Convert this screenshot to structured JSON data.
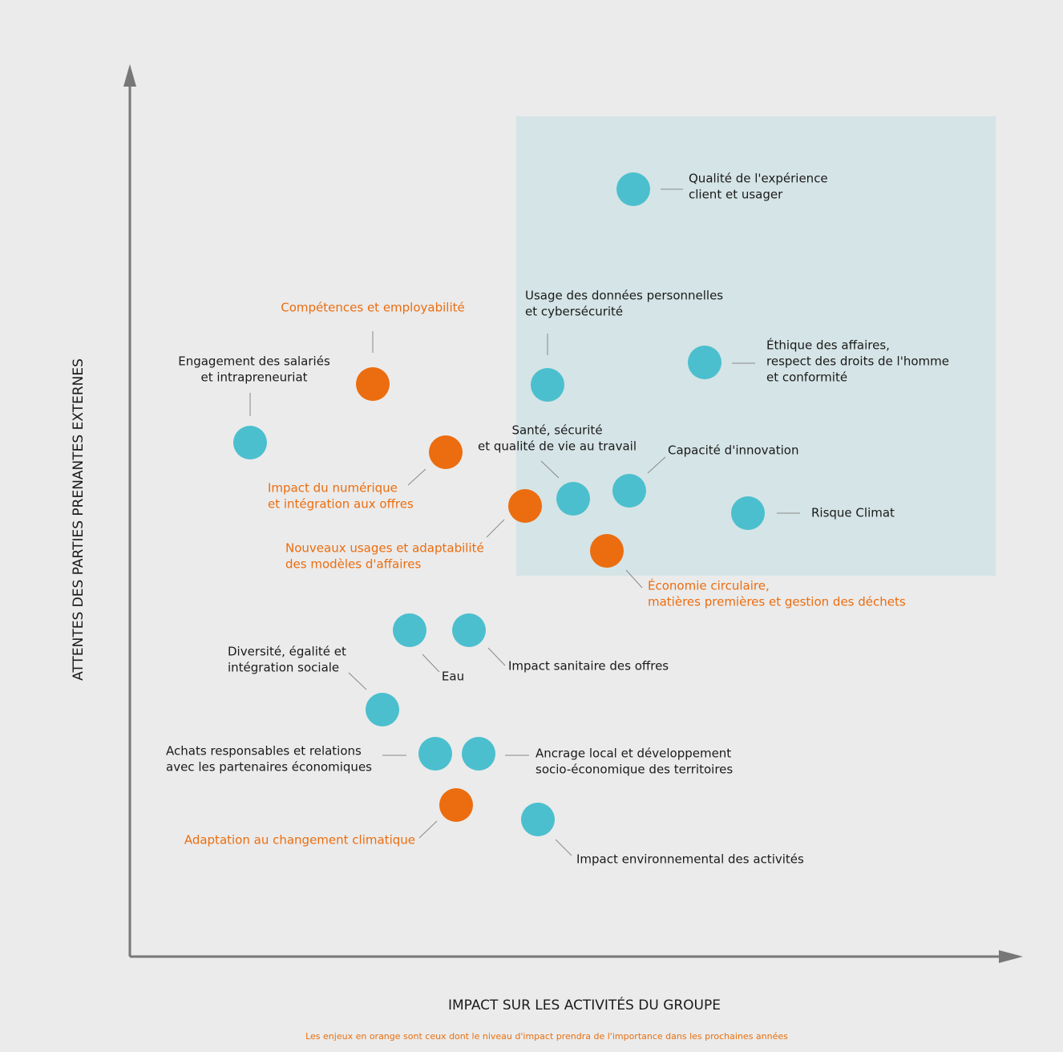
{
  "axes": {
    "y_label": "ATTENTES DES PARTIES PRENANTES EXTERNES",
    "x_label": "IMPACT SUR LES ACTIVITÉS DU GROUPE"
  },
  "footnote": "Les enjeux en orange sont ceux dont le niveau d'impact prendra de l'importance dans les prochaines années",
  "nodes": [
    {
      "label": [
        "Qualité de l'expérience",
        "client et usager"
      ],
      "color": "#4bbfce"
    },
    {
      "label": [
        "Usage des données personnelles",
        "et cybersécurité"
      ],
      "color": "#4bbfce"
    },
    {
      "label": [
        "Éthique des affaires,",
        "respect des droits de l'homme",
        "et conformité"
      ],
      "color": "#4bbfce"
    },
    {
      "label": [
        "Compétences et employabilité"
      ],
      "color": "#eb6d0f"
    },
    {
      "label": [
        "Engagement des salariés",
        "et intrapreneuriat"
      ],
      "color": "#4bbfce"
    },
    {
      "label": [
        "Impact du numérique",
        "et intégration aux offres"
      ],
      "color": "#eb6d0f"
    },
    {
      "label": [
        "Santé, sécurité",
        "et qualité de vie au travail"
      ],
      "color": "#4bbfce"
    },
    {
      "label": [
        "Capacité d'innovation"
      ],
      "color": "#4bbfce"
    },
    {
      "label": [
        "Nouveaux usages et adaptabilité",
        "des modèles d'affaires"
      ],
      "color": "#eb6d0f"
    },
    {
      "label": [
        "Risque Climat"
      ],
      "color": "#4bbfce"
    },
    {
      "label": [
        "Économie circulaire,",
        "matières premières et gestion des déchets"
      ],
      "color": "#eb6d0f"
    },
    {
      "label": [
        "Eau"
      ],
      "color": "#4bbfce"
    },
    {
      "label": [
        "Impact sanitaire des offres"
      ],
      "color": "#4bbfce"
    },
    {
      "label": [
        "Diversité, égalité et",
        "intégration sociale"
      ],
      "color": "#4bbfce"
    },
    {
      "label": [
        "Achats responsables et relations",
        "avec les partenaires économiques"
      ],
      "color": "#4bbfce"
    },
    {
      "label": [
        "Ancrage local et développement",
        "socio-économique des territoires"
      ],
      "color": "#4bbfce"
    },
    {
      "label": [
        "Adaptation au changement climatique"
      ],
      "color": "#eb6d0f"
    },
    {
      "label": [
        "Impact environnemental des activités"
      ],
      "color": "#4bbfce"
    }
  ]
}
